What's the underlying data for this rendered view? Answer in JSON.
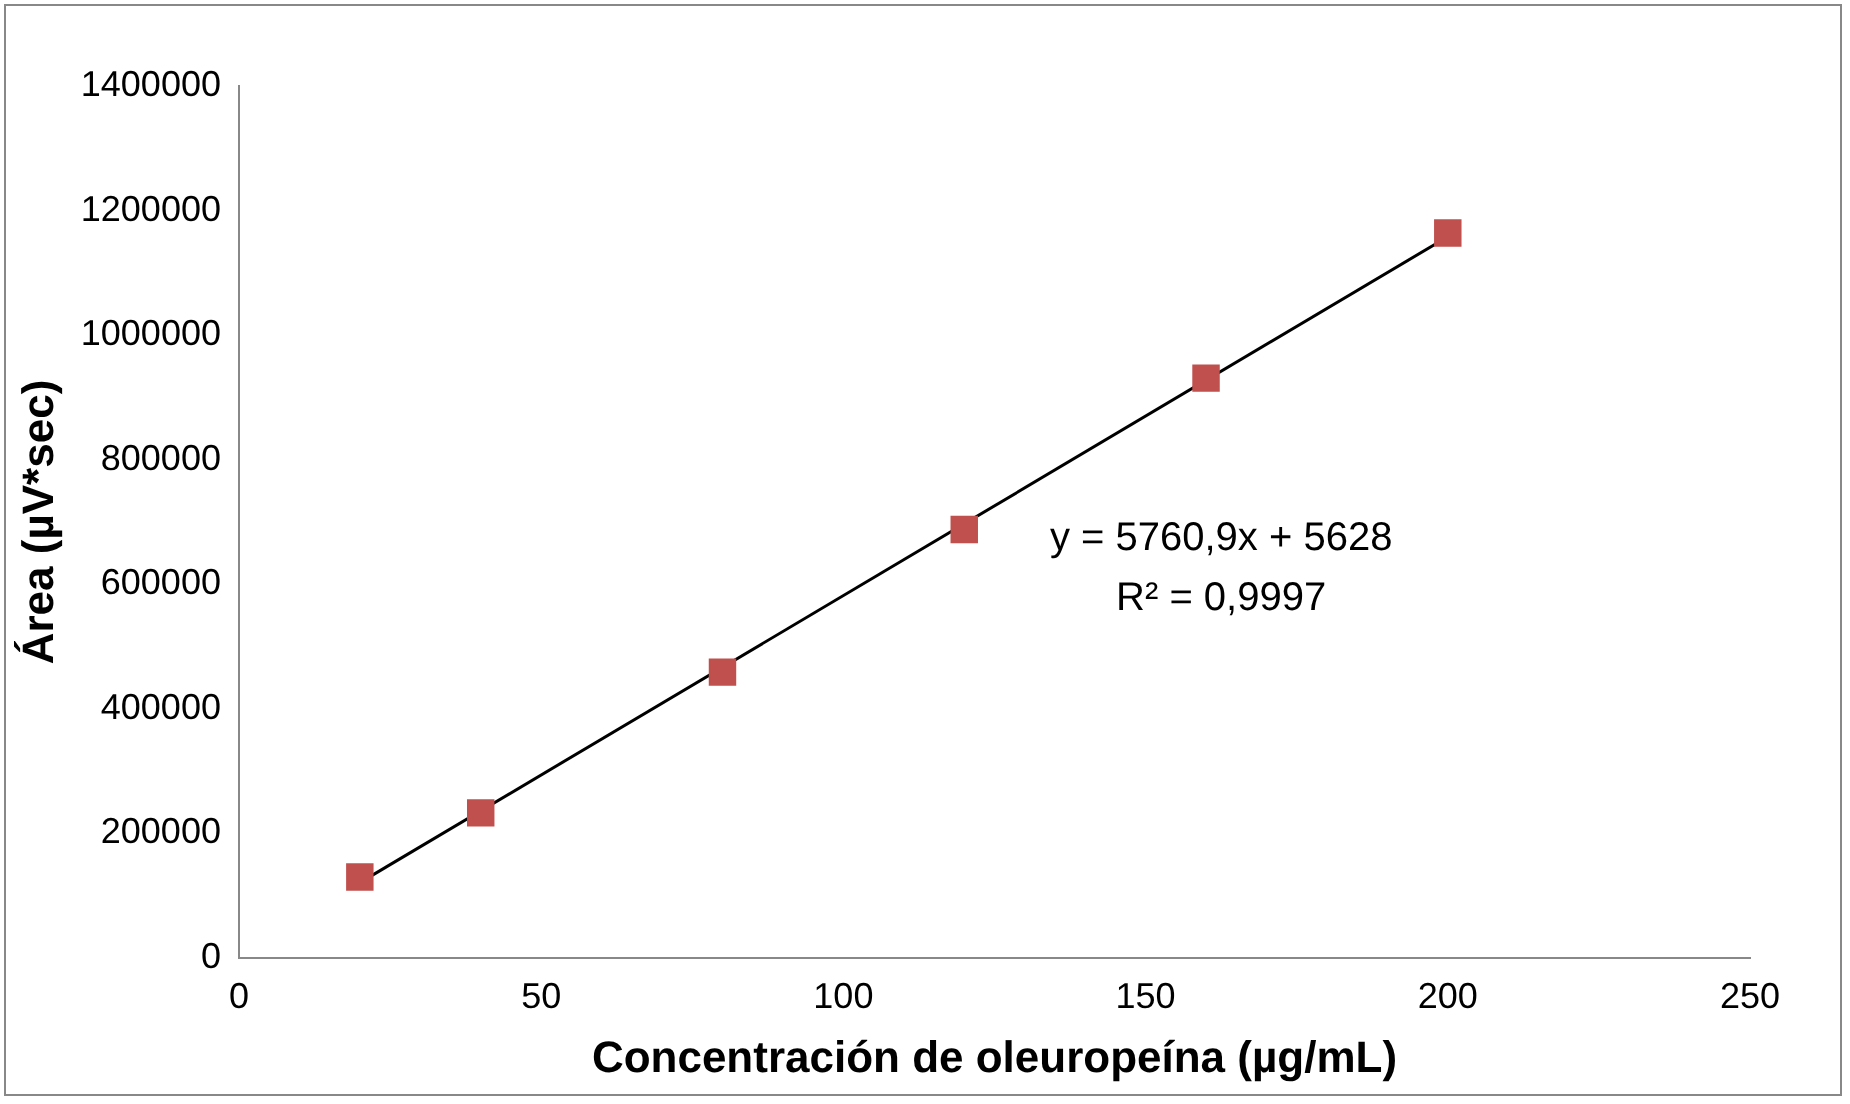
{
  "chart_data": {
    "type": "scatter",
    "xlabel": "Concentración de oleuropeína (µg/mL)",
    "ylabel": "Área (µV*sec)",
    "x": [
      20,
      40,
      80,
      120,
      160,
      200
    ],
    "series": [
      {
        "type": "scatter",
        "color": "#c0504d",
        "values": [
          130000,
          233000,
          459000,
          688000,
          931000,
          1164000
        ],
        "marker": "square"
      },
      {
        "type": "line",
        "color": "#000000",
        "x": [
          20,
          200
        ],
        "values": [
          121000,
          1158000
        ],
        "marker": "none"
      }
    ],
    "xlim": [
      0,
      250
    ],
    "xticks": [
      0,
      50,
      100,
      150,
      200,
      250
    ],
    "ylim": [
      0,
      1400000
    ],
    "yticks": [
      0,
      200000,
      400000,
      600000,
      800000,
      1000000,
      1200000,
      1400000
    ],
    "grid": false,
    "legend": false,
    "annotations": [
      "y = 5760,9x + 5628",
      "R² = 0,9997"
    ]
  }
}
